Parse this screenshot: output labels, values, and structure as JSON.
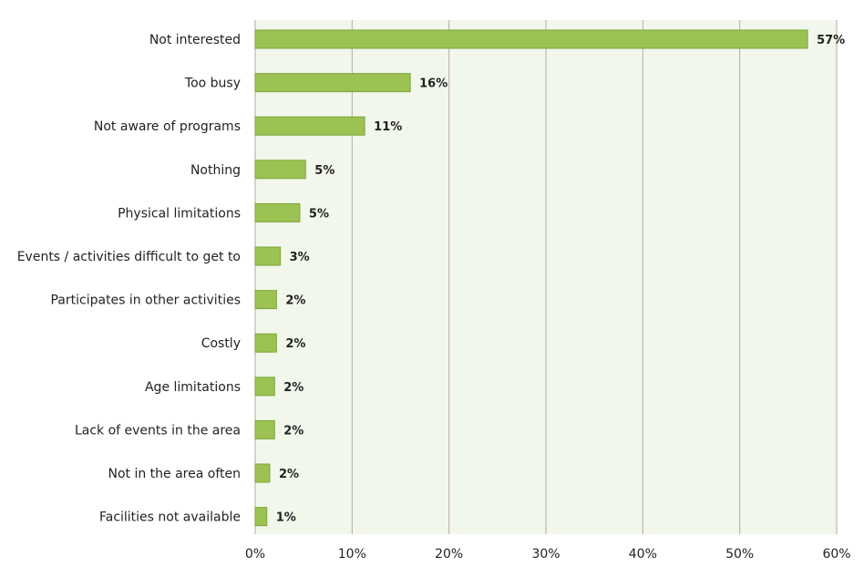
{
  "chart_data": {
    "type": "bar",
    "orientation": "horizontal",
    "title": "",
    "xlabel": "",
    "ylabel": "",
    "categories": [
      "Not interested",
      "Too busy",
      "Not aware of programs",
      "Nothing",
      "Physical limitations",
      "Events / activities difficult to get to",
      "Participates in other activities",
      "Costly",
      "Age limitations",
      "Lack of events in the area",
      "Not in the area often",
      "Facilities not available"
    ],
    "values": [
      57,
      16,
      11.3,
      5.2,
      4.6,
      2.6,
      2.2,
      2.2,
      2.0,
      2.0,
      1.5,
      1.2
    ],
    "value_labels": [
      "57%",
      "16%",
      "11%",
      "5%",
      "5%",
      "3%",
      "2%",
      "2%",
      "2%",
      "2%",
      "2%",
      "1%"
    ],
    "xlim": [
      0,
      60
    ],
    "x_ticks": [
      0,
      10,
      20,
      30,
      40,
      50,
      60
    ],
    "x_tick_labels": [
      "0%",
      "10%",
      "20%",
      "30%",
      "40%",
      "50%",
      "60%"
    ],
    "grid": "vertical",
    "legend": "none",
    "colors": {
      "bar": "#9bc253",
      "bar_edge": "#7ea53c",
      "plot_bg": "#f2f7ec",
      "grid": "#b8aaa5"
    }
  }
}
